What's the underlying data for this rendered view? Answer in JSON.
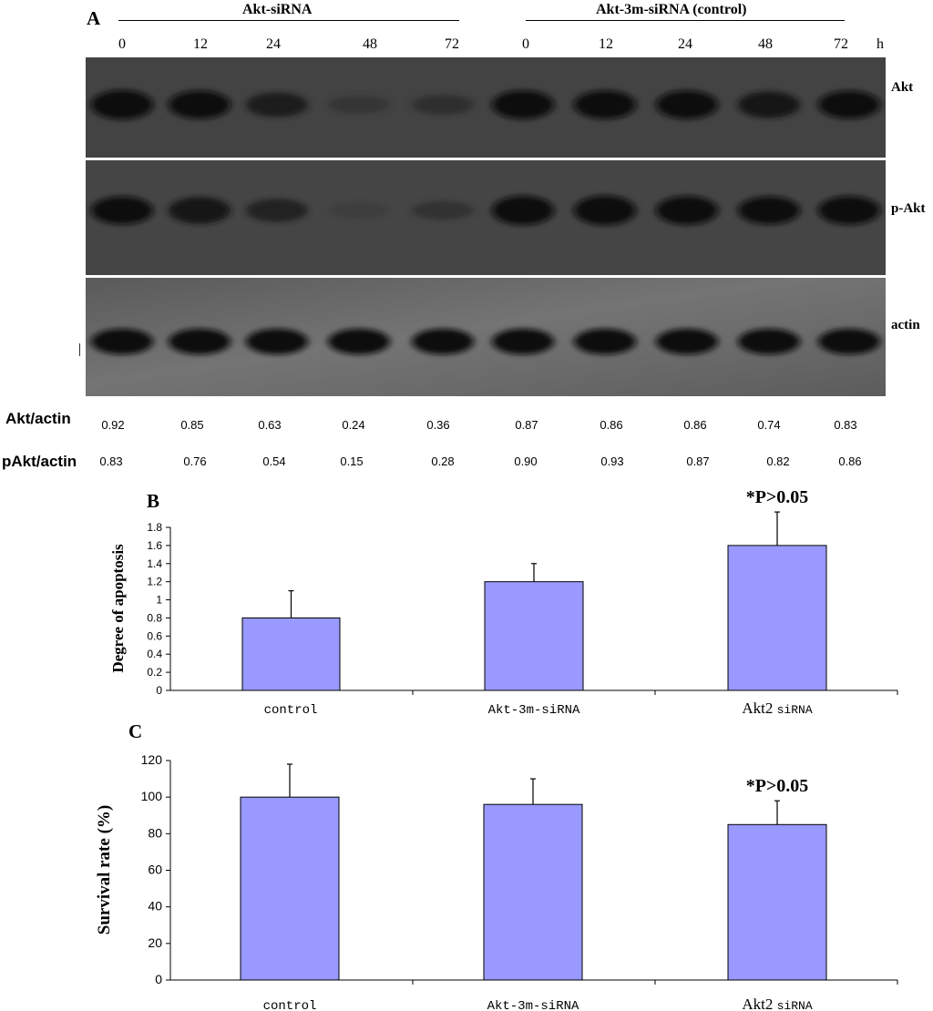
{
  "panel_a": {
    "letter": "A",
    "groups": [
      {
        "title": "Akt-siRNA"
      },
      {
        "title": "Akt-3m-siRNA  (control)"
      }
    ],
    "lanes": [
      "0",
      "12",
      "24",
      "48",
      "72",
      "0",
      "12",
      "24",
      "48",
      "72"
    ],
    "time_unit": "h",
    "blot_rows": [
      "Akt",
      "p-Akt",
      "actin"
    ],
    "band_intensity": {
      "Akt": [
        0.92,
        0.85,
        0.63,
        0.24,
        0.36,
        0.87,
        0.86,
        0.86,
        0.74,
        0.83
      ],
      "p-Akt": [
        0.83,
        0.76,
        0.54,
        0.15,
        0.28,
        0.9,
        0.93,
        0.87,
        0.82,
        0.86
      ],
      "actin": [
        0.9,
        0.9,
        0.9,
        0.9,
        0.9,
        0.9,
        0.9,
        0.9,
        0.9,
        0.9
      ]
    },
    "quant_rows": [
      {
        "label": "Akt/actin",
        "values": [
          "0.92",
          "0.85",
          "0.63",
          "0.24",
          "0.36",
          "0.87",
          "0.86",
          "0.86",
          "0.74",
          "0.83"
        ]
      },
      {
        "label": "pAkt/actin",
        "values": [
          "0.83",
          "0.76",
          "0.54",
          "0.15",
          "0.28",
          "0.90",
          "0.93",
          "0.87",
          "0.82",
          "0.86"
        ]
      }
    ]
  },
  "chart_data": [
    {
      "panel": "B",
      "type": "bar",
      "categories": [
        "control",
        "Akt-3m-siRNA",
        "Akt2 siRNA"
      ],
      "values": [
        0.8,
        1.2,
        1.6
      ],
      "errors": [
        0.3,
        0.2,
        0.37
      ],
      "ylabel": "Degree of apoptosis",
      "ylim": [
        0,
        1.8
      ],
      "yticks": [
        "0",
        "0.2",
        "0.4",
        "0.6",
        "0.8",
        "1",
        "1.2",
        "1.4",
        "1.6",
        "1.8"
      ],
      "annotation": "*P>0.05",
      "annotation_bar": 2,
      "bar_color": "#9999ff",
      "grid": false
    },
    {
      "panel": "C",
      "type": "bar",
      "categories": [
        "control",
        "Akt-3m-siRNA",
        "Akt2 siRNA"
      ],
      "values": [
        100,
        96,
        85
      ],
      "errors": [
        18,
        14,
        13
      ],
      "ylabel": "Survival rate (%)",
      "ylim": [
        0,
        120
      ],
      "yticks": [
        "0",
        "20",
        "40",
        "60",
        "80",
        "100",
        "120"
      ],
      "annotation": "*P>0.05",
      "annotation_bar": 2,
      "bar_color": "#9999ff",
      "grid": false
    }
  ]
}
